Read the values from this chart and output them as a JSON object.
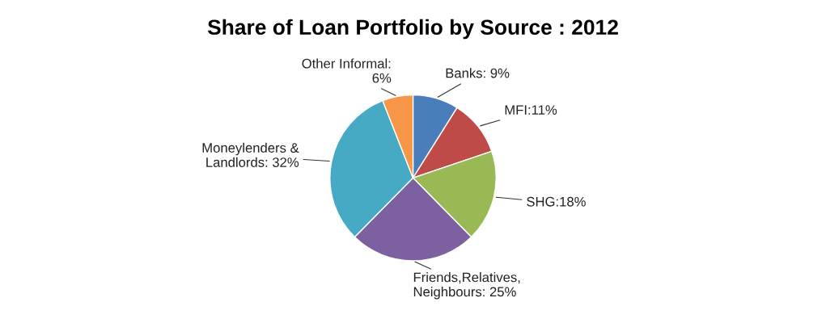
{
  "chart_data": {
    "type": "pie",
    "title": "Share of Loan Portfolio by Source : 2012",
    "categories": [
      "Banks: 9%",
      "MFI:11%",
      "SHG:18%",
      "Friends,Relatives,\nNeighbours: 25%",
      "Moneylenders &\nLandlords: 32%",
      "Other Informal:\n6%"
    ],
    "values": [
      9,
      11,
      18,
      25,
      32,
      6
    ],
    "colors": [
      "#4a7ebb",
      "#be4b48",
      "#98b954",
      "#7d60a0",
      "#46aac5",
      "#f79646"
    ],
    "legend": false
  }
}
